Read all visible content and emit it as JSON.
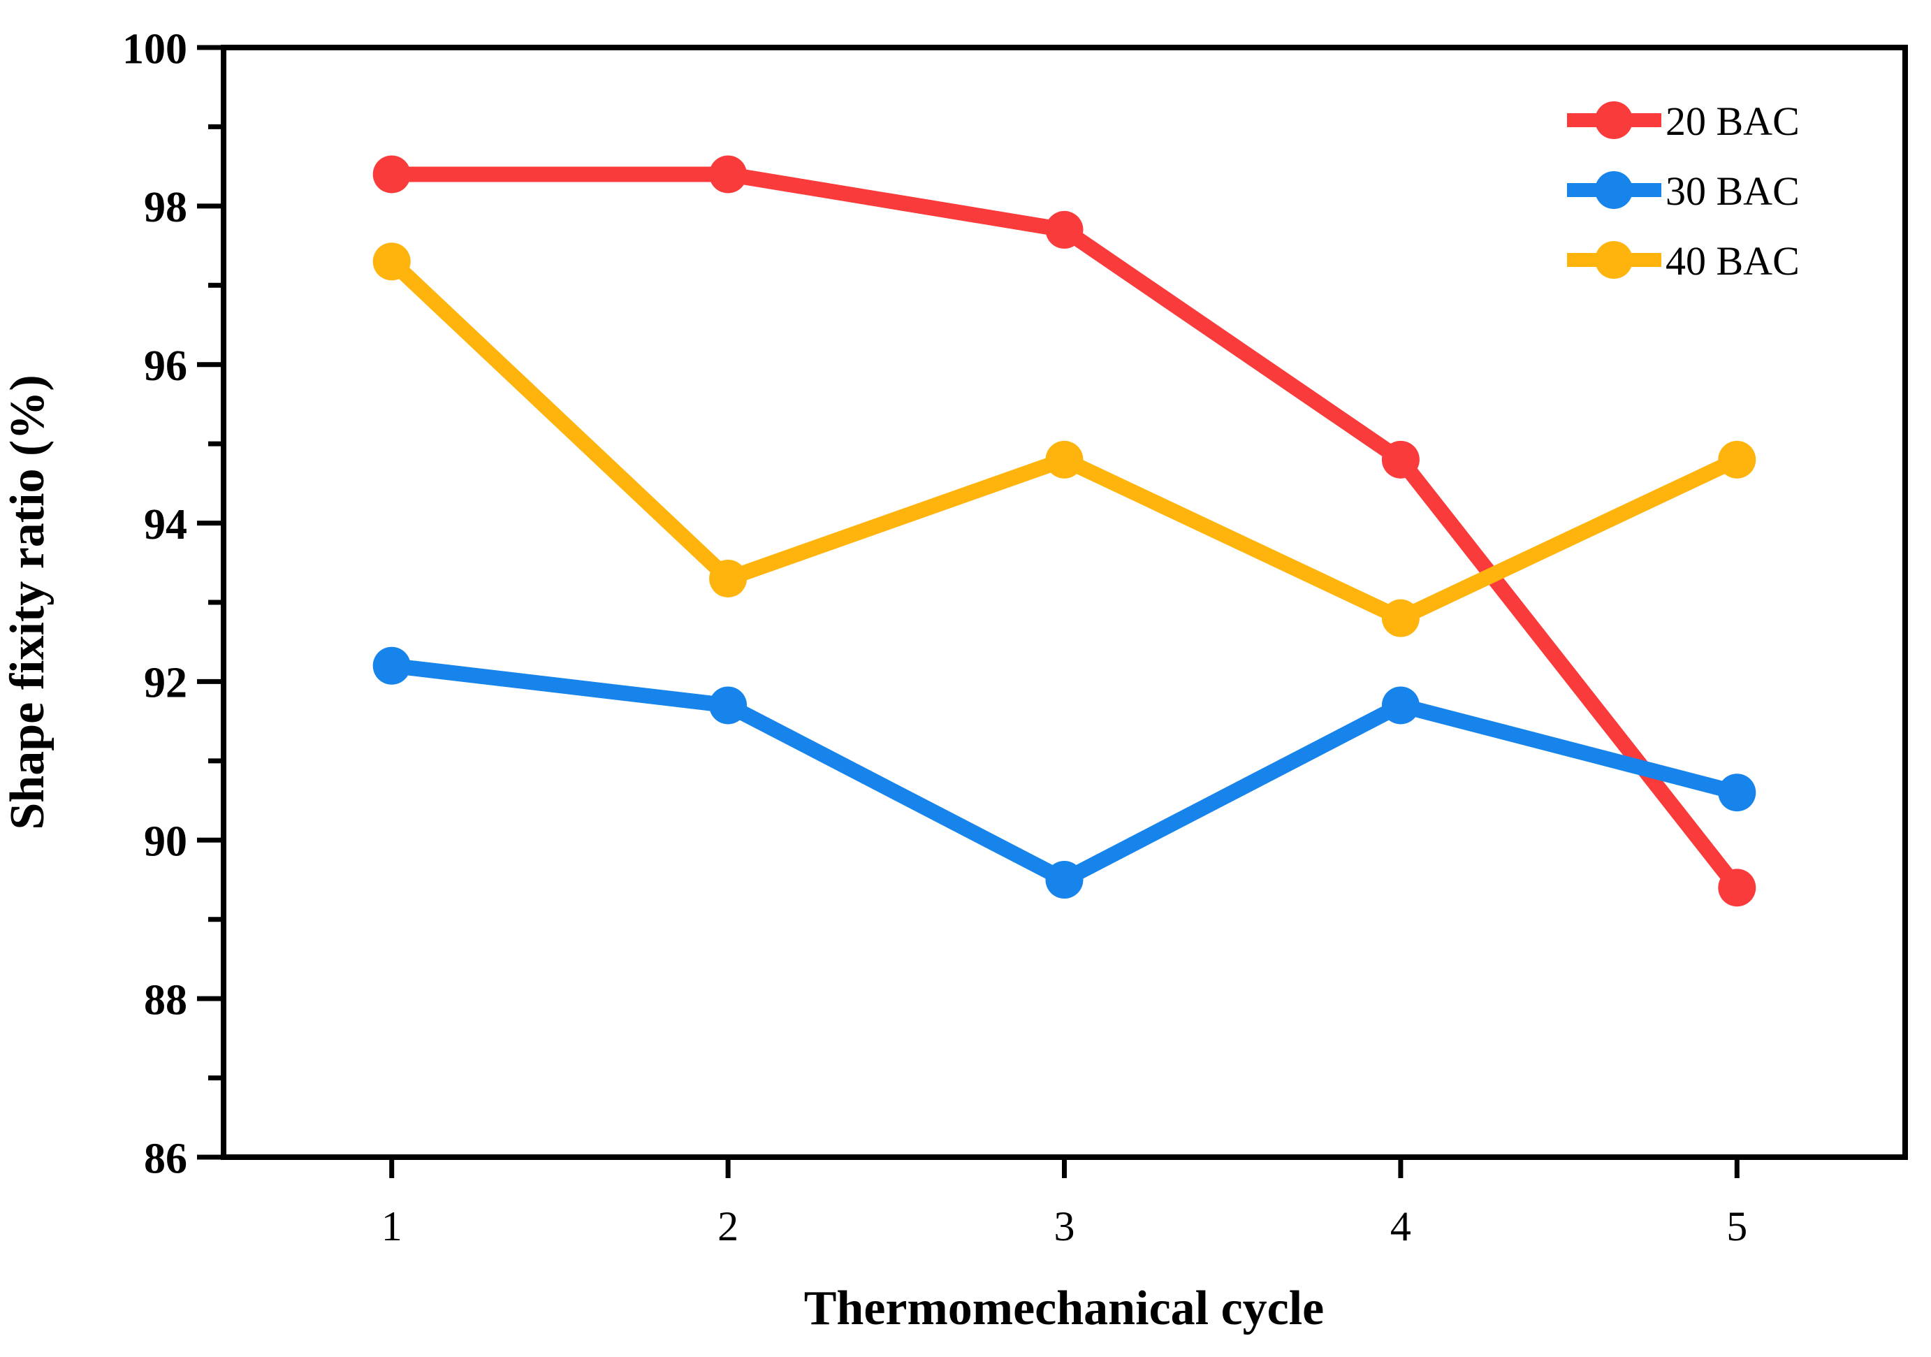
{
  "chart_data": {
    "type": "line",
    "title": "",
    "xlabel": "Thermomechanical cycle",
    "ylabel": "Shape fixity ratio (%)",
    "x": [
      1,
      2,
      3,
      4,
      5
    ],
    "x_tick_labels": [
      "1",
      "2",
      "3",
      "4",
      "5"
    ],
    "ylim": [
      86,
      100
    ],
    "y_major_ticks": [
      86,
      88,
      90,
      92,
      94,
      96,
      98,
      100
    ],
    "y_minor_step": 1,
    "grid": "off",
    "legend_position": "top-right-inside",
    "marker": "circle",
    "series": [
      {
        "name": "20 BAC",
        "color": "#F93B3B",
        "values": [
          98.4,
          98.4,
          97.7,
          94.8,
          89.4
        ]
      },
      {
        "name": "30 BAC",
        "color": "#1684EA",
        "values": [
          92.2,
          91.7,
          89.5,
          91.7,
          90.6
        ]
      },
      {
        "name": "40 BAC",
        "color": "#FFB30D",
        "values": [
          97.3,
          93.3,
          94.8,
          92.8,
          94.8
        ]
      }
    ]
  },
  "colors": {
    "axis": "#000000",
    "background": "#ffffff",
    "series_20_bac": "#F93B3B",
    "series_30_bac": "#1684EA",
    "series_40_bac": "#FFB30D"
  }
}
